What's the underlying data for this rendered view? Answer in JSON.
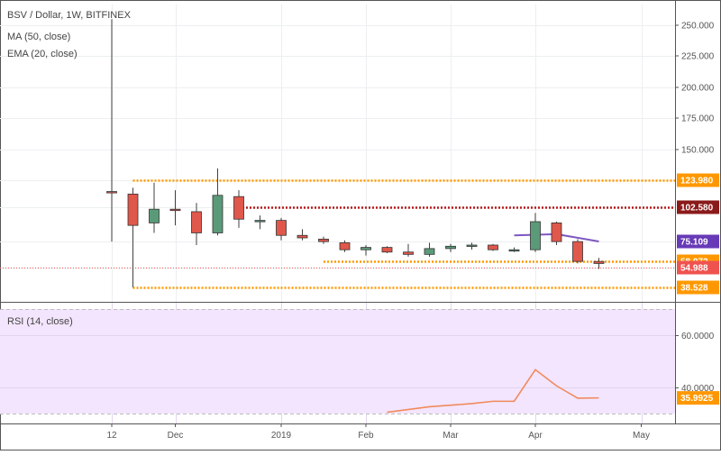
{
  "chart_data": [
    {
      "type": "candlestick",
      "title": "BSV / Dollar, 1W, BITFINEX",
      "indicators": [
        "MA (50, close)",
        "EMA (20, close)"
      ],
      "ylim": [
        25,
        260
      ],
      "ytick_labels": [
        "250.000",
        "225.000",
        "200.000",
        "175.000",
        "150.000"
      ],
      "xtick_labels": [
        "12",
        "Dec",
        "2019",
        "Feb",
        "Mar",
        "Apr",
        "May"
      ],
      "candles": [
        {
          "date": "2018-11-12",
          "open": 115.0,
          "high": 255.0,
          "low": 75.0,
          "close": 114.0
        },
        {
          "date": "2018-11-19",
          "open": 113.0,
          "high": 118.0,
          "low": 38.5,
          "close": 88.0
        },
        {
          "date": "2018-11-26",
          "open": 90.0,
          "high": 122.0,
          "low": 82.0,
          "close": 101.0
        },
        {
          "date": "2018-12-03",
          "open": 101.0,
          "high": 116.0,
          "low": 88.0,
          "close": 100.0
        },
        {
          "date": "2018-12-10",
          "open": 99.0,
          "high": 106.0,
          "low": 72.0,
          "close": 82.0
        },
        {
          "date": "2018-12-17",
          "open": 82.0,
          "high": 134.0,
          "low": 80.0,
          "close": 112.0
        },
        {
          "date": "2018-12-24",
          "open": 111.0,
          "high": 116.0,
          "low": 86.0,
          "close": 93.0
        },
        {
          "date": "2018-12-31",
          "open": 91.0,
          "high": 96.0,
          "low": 85.0,
          "close": 92.0
        },
        {
          "date": "2019-01-07",
          "open": 92.0,
          "high": 94.0,
          "low": 76.0,
          "close": 80.0
        },
        {
          "date": "2019-01-14",
          "open": 80.0,
          "high": 85.0,
          "low": 76.0,
          "close": 78.0
        },
        {
          "date": "2019-01-21",
          "open": 77.0,
          "high": 79.0,
          "low": 73.0,
          "close": 75.0
        },
        {
          "date": "2019-01-28",
          "open": 74.0,
          "high": 76.0,
          "low": 66.0,
          "close": 68.0
        },
        {
          "date": "2019-02-04",
          "open": 68.0,
          "high": 72.0,
          "low": 63.0,
          "close": 70.0
        },
        {
          "date": "2019-02-11",
          "open": 70.0,
          "high": 71.0,
          "low": 65.0,
          "close": 66.0
        },
        {
          "date": "2019-02-18",
          "open": 66.0,
          "high": 73.0,
          "low": 62.0,
          "close": 64.0
        },
        {
          "date": "2019-02-25",
          "open": 64.0,
          "high": 74.0,
          "low": 62.0,
          "close": 69.0
        },
        {
          "date": "2019-03-04",
          "open": 69.0,
          "high": 73.0,
          "low": 66.0,
          "close": 71.0
        },
        {
          "date": "2019-03-11",
          "open": 71.0,
          "high": 74.0,
          "low": 68.0,
          "close": 72.0
        },
        {
          "date": "2019-03-18",
          "open": 72.0,
          "high": 73.0,
          "low": 67.0,
          "close": 68.0
        },
        {
          "date": "2019-03-25",
          "open": 68.0,
          "high": 70.0,
          "low": 66.0,
          "close": 68.0
        },
        {
          "date": "2019-04-01",
          "open": 68.0,
          "high": 98.0,
          "low": 66.0,
          "close": 91.0
        },
        {
          "date": "2019-04-08",
          "open": 90.0,
          "high": 91.0,
          "low": 72.0,
          "close": 75.0
        },
        {
          "date": "2019-04-15",
          "open": 75.0,
          "high": 77.0,
          "low": 57.0,
          "close": 58.0
        },
        {
          "date": "2019-04-22",
          "open": 58.0,
          "high": 61.0,
          "low": 54.0,
          "close": 57.0
        }
      ],
      "ma_line": [
        {
          "date": "2019-03-25",
          "value": 80.0
        },
        {
          "date": "2019-04-08",
          "value": 81.0
        },
        {
          "date": "2019-04-22",
          "value": 75.1
        }
      ],
      "horizontal_levels": [
        {
          "value": 123.98,
          "label": "123.980",
          "color": "#ff9800",
          "style": "dotted",
          "start": "2018-11-19"
        },
        {
          "value": 102.58,
          "label": "102.580",
          "color": "#b71c1c",
          "style": "dotted",
          "start": "2018-12-24"
        },
        {
          "value": 58.072,
          "label": "58.072",
          "color": "#ff9800",
          "style": "dotted",
          "start": "2019-01-21"
        },
        {
          "value": 38.528,
          "label": "38.528",
          "color": "#ff9800",
          "style": "dotted",
          "start": "2018-11-19"
        },
        {
          "value": 54.988,
          "label": "54.988",
          "color": "#ef5350",
          "style": "dotted-thin",
          "start": "start"
        }
      ],
      "price_tags": [
        {
          "value": 75.109,
          "label": "75.109",
          "bg": "#673ab7"
        }
      ],
      "colors": {
        "up": "#5b9a78",
        "down": "#e0584b",
        "ma": "#7e57c2"
      }
    },
    {
      "type": "line",
      "title": "RSI (14, close)",
      "ylim": [
        27,
        74
      ],
      "ytick_labels": [
        "60.0000",
        "40.0000"
      ],
      "bands": [
        30,
        70
      ],
      "series": [
        {
          "points": [
            {
              "date": "2019-02-11",
              "value": 30.5
            },
            {
              "date": "2019-02-25",
              "value": 32.6
            },
            {
              "date": "2019-03-11",
              "value": 33.8
            },
            {
              "date": "2019-03-18",
              "value": 34.7
            },
            {
              "date": "2019-03-25",
              "value": 34.7
            },
            {
              "date": "2019-04-01",
              "value": 46.8
            },
            {
              "date": "2019-04-08",
              "value": 40.6
            },
            {
              "date": "2019-04-15",
              "value": 35.9
            },
            {
              "date": "2019-04-22",
              "value": 35.9925
            }
          ]
        }
      ],
      "price_tag": {
        "value": 35.9925,
        "label": "35.9925",
        "bg": "#ff9800"
      },
      "colors": {
        "line": "#f08a5d",
        "fill": "#f3e5fd",
        "band": "#bdbdbd"
      }
    }
  ]
}
